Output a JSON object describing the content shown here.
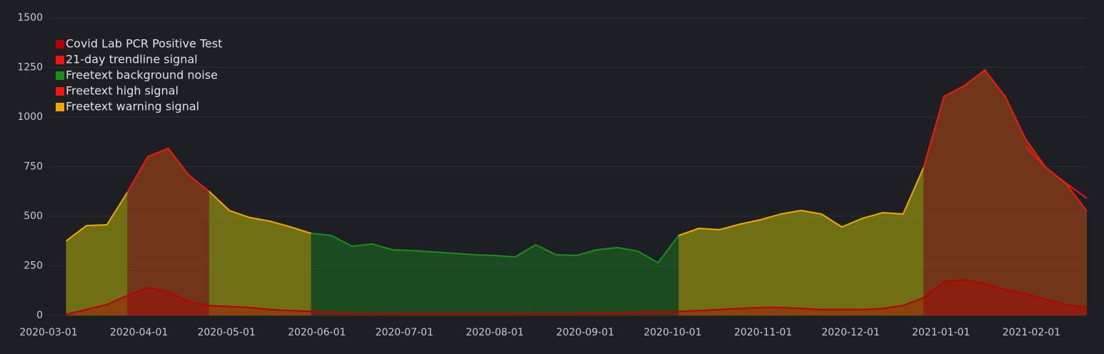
{
  "chart_data": {
    "type": "line",
    "x": [
      "2020-03-07",
      "2020-03-14",
      "2020-03-21",
      "2020-03-28",
      "2020-04-04",
      "2020-04-11",
      "2020-04-18",
      "2020-04-25",
      "2020-05-02",
      "2020-05-09",
      "2020-05-16",
      "2020-05-23",
      "2020-05-30",
      "2020-06-06",
      "2020-06-13",
      "2020-06-20",
      "2020-06-27",
      "2020-07-04",
      "2020-07-11",
      "2020-07-18",
      "2020-07-25",
      "2020-08-01",
      "2020-08-08",
      "2020-08-15",
      "2020-08-22",
      "2020-08-29",
      "2020-09-05",
      "2020-09-12",
      "2020-09-19",
      "2020-09-26",
      "2020-10-03",
      "2020-10-10",
      "2020-10-17",
      "2020-10-24",
      "2020-10-31",
      "2020-11-07",
      "2020-11-14",
      "2020-11-21",
      "2020-11-28",
      "2020-12-05",
      "2020-12-12",
      "2020-12-19",
      "2020-12-26",
      "2021-01-02",
      "2021-01-09",
      "2021-01-16",
      "2021-01-23",
      "2021-01-30",
      "2021-02-06",
      "2021-02-13",
      "2021-02-20"
    ],
    "series": [
      {
        "name": "Freetext background noise",
        "color": "#1a8f1a",
        "area": true,
        "values": [
          375,
          453,
          457,
          620,
          800,
          842,
          709,
          626,
          529,
          493,
          475,
          446,
          414,
          403,
          349,
          360,
          331,
          327,
          320,
          313,
          306,
          302,
          295,
          356,
          306,
          302,
          331,
          342,
          324,
          266,
          403,
          439,
          432,
          460,
          482,
          511,
          529,
          511,
          446,
          489,
          518,
          511,
          745,
          1104,
          1158,
          1237,
          1104,
          888,
          745,
          662,
          525
        ]
      },
      {
        "name": "Freetext warning signal",
        "color": "#f2a500",
        "area": true,
        "values": [
          375,
          453,
          457,
          620,
          null,
          null,
          null,
          626,
          529,
          493,
          475,
          446,
          414,
          null,
          null,
          null,
          null,
          null,
          null,
          null,
          null,
          null,
          null,
          null,
          null,
          null,
          null,
          null,
          null,
          null,
          403,
          439,
          432,
          460,
          482,
          511,
          529,
          511,
          446,
          489,
          518,
          511,
          745,
          null,
          null,
          null,
          null,
          null,
          null,
          null,
          null
        ]
      },
      {
        "name": "Freetext high signal",
        "color": "#f2160e",
        "area": true,
        "values": [
          null,
          null,
          null,
          620,
          800,
          842,
          709,
          626,
          null,
          null,
          null,
          null,
          null,
          null,
          null,
          null,
          null,
          null,
          null,
          null,
          null,
          null,
          null,
          null,
          null,
          null,
          null,
          null,
          null,
          null,
          null,
          null,
          null,
          null,
          null,
          null,
          null,
          null,
          null,
          null,
          null,
          null,
          745,
          1104,
          1158,
          1237,
          1104,
          888,
          745,
          662,
          525
        ]
      },
      {
        "name": "Covid Lab PCR Positive Test",
        "color": "#b30000",
        "area": true,
        "values": [
          5,
          30,
          55,
          100,
          140,
          120,
          70,
          50,
          45,
          40,
          30,
          25,
          20,
          15,
          10,
          10,
          8,
          8,
          8,
          8,
          8,
          8,
          8,
          10,
          10,
          10,
          12,
          12,
          15,
          20,
          20,
          25,
          30,
          35,
          40,
          40,
          35,
          30,
          30,
          30,
          35,
          50,
          90,
          170,
          180,
          160,
          130,
          110,
          80,
          55,
          40
        ]
      },
      {
        "name": "21-day trendline signal",
        "color": "#f2160e",
        "area": false,
        "values": [
          null,
          null,
          null,
          null,
          null,
          null,
          null,
          null,
          null,
          null,
          null,
          null,
          null,
          null,
          null,
          null,
          null,
          null,
          null,
          null,
          null,
          null,
          null,
          null,
          null,
          null,
          null,
          null,
          null,
          null,
          null,
          null,
          null,
          null,
          null,
          null,
          null,
          null,
          null,
          null,
          null,
          null,
          null,
          null,
          null,
          null,
          null,
          852,
          745,
          665,
          590
        ]
      }
    ],
    "legend_order": [
      3,
      4,
      0,
      2,
      1
    ],
    "legend": "top-left",
    "xlim": [
      "2020-03-01",
      "2021-02-20"
    ],
    "xticks": [
      "2020-03-01",
      "2020-04-01",
      "2020-05-01",
      "2020-06-01",
      "2020-07-01",
      "2020-08-01",
      "2020-09-01",
      "2020-10-01",
      "2020-11-01",
      "2020-12-01",
      "2021-01-01",
      "2021-02-01"
    ],
    "ylim": [
      0,
      1500
    ],
    "yticks": [
      0,
      250,
      500,
      750,
      1000,
      1250,
      1500
    ],
    "grid": true
  }
}
